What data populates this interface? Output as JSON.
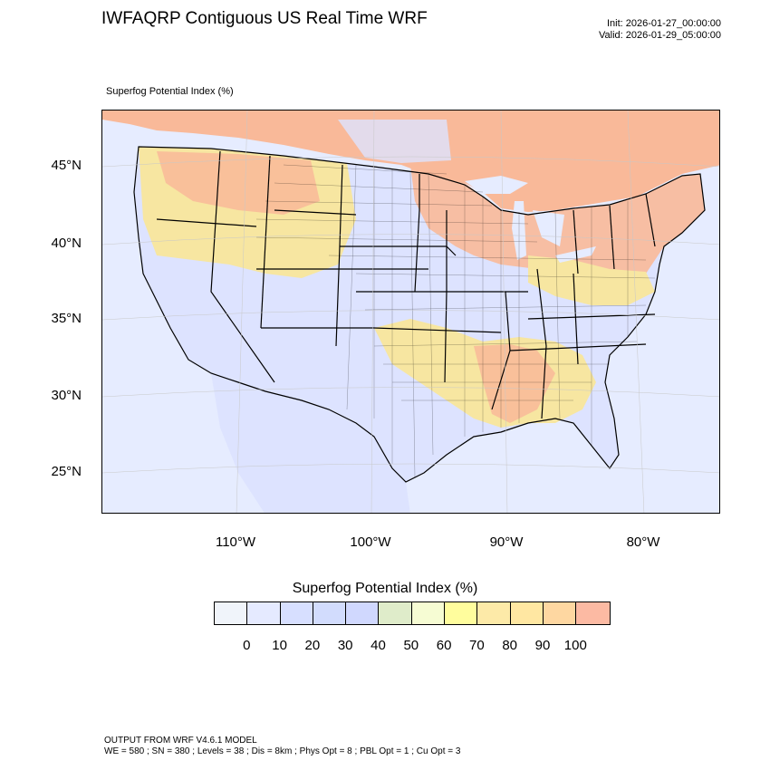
{
  "header": {
    "title": "IWFAQRP Contiguous US Real Time WRF",
    "init": "Init: 2026-01-27_00:00:00",
    "valid": "Valid: 2026-01-29_05:00:00"
  },
  "map": {
    "field_label": "Superfog Potential Index   (%)",
    "lat_labels": [
      "45°N",
      "40°N",
      "35°N",
      "30°N",
      "25°N"
    ],
    "lon_labels": [
      "110°W",
      "100°W",
      "90°W",
      "80°W"
    ],
    "colors": {
      "ocean": "#e6ecff",
      "low": "#dde3ff",
      "mid": "#f7e6a1",
      "high": "#f9b999",
      "boundary": "#000000"
    }
  },
  "colorbar": {
    "title": "Superfog Potential Index  (%)",
    "colors": [
      "#f0f4fa",
      "#e5eaff",
      "#d7dfff",
      "#d2dcfd",
      "#d0d8fe",
      "#dfecca",
      "#f6fcd3",
      "#fffd9d",
      "#fdeaa8",
      "#ffe7a2",
      "#fed7a1",
      "#fcbaa3"
    ],
    "ticks": [
      "0",
      "10",
      "20",
      "30",
      "40",
      "50",
      "60",
      "70",
      "80",
      "90",
      "100"
    ]
  },
  "footer": {
    "line1": "OUTPUT FROM WRF V4.6.1 MODEL",
    "line2": "WE = 580 ; SN = 380 ; Levels = 38 ; Dis = 8km ; Phys Opt = 8 ; PBL Opt = 1 ; Cu Opt = 3"
  }
}
